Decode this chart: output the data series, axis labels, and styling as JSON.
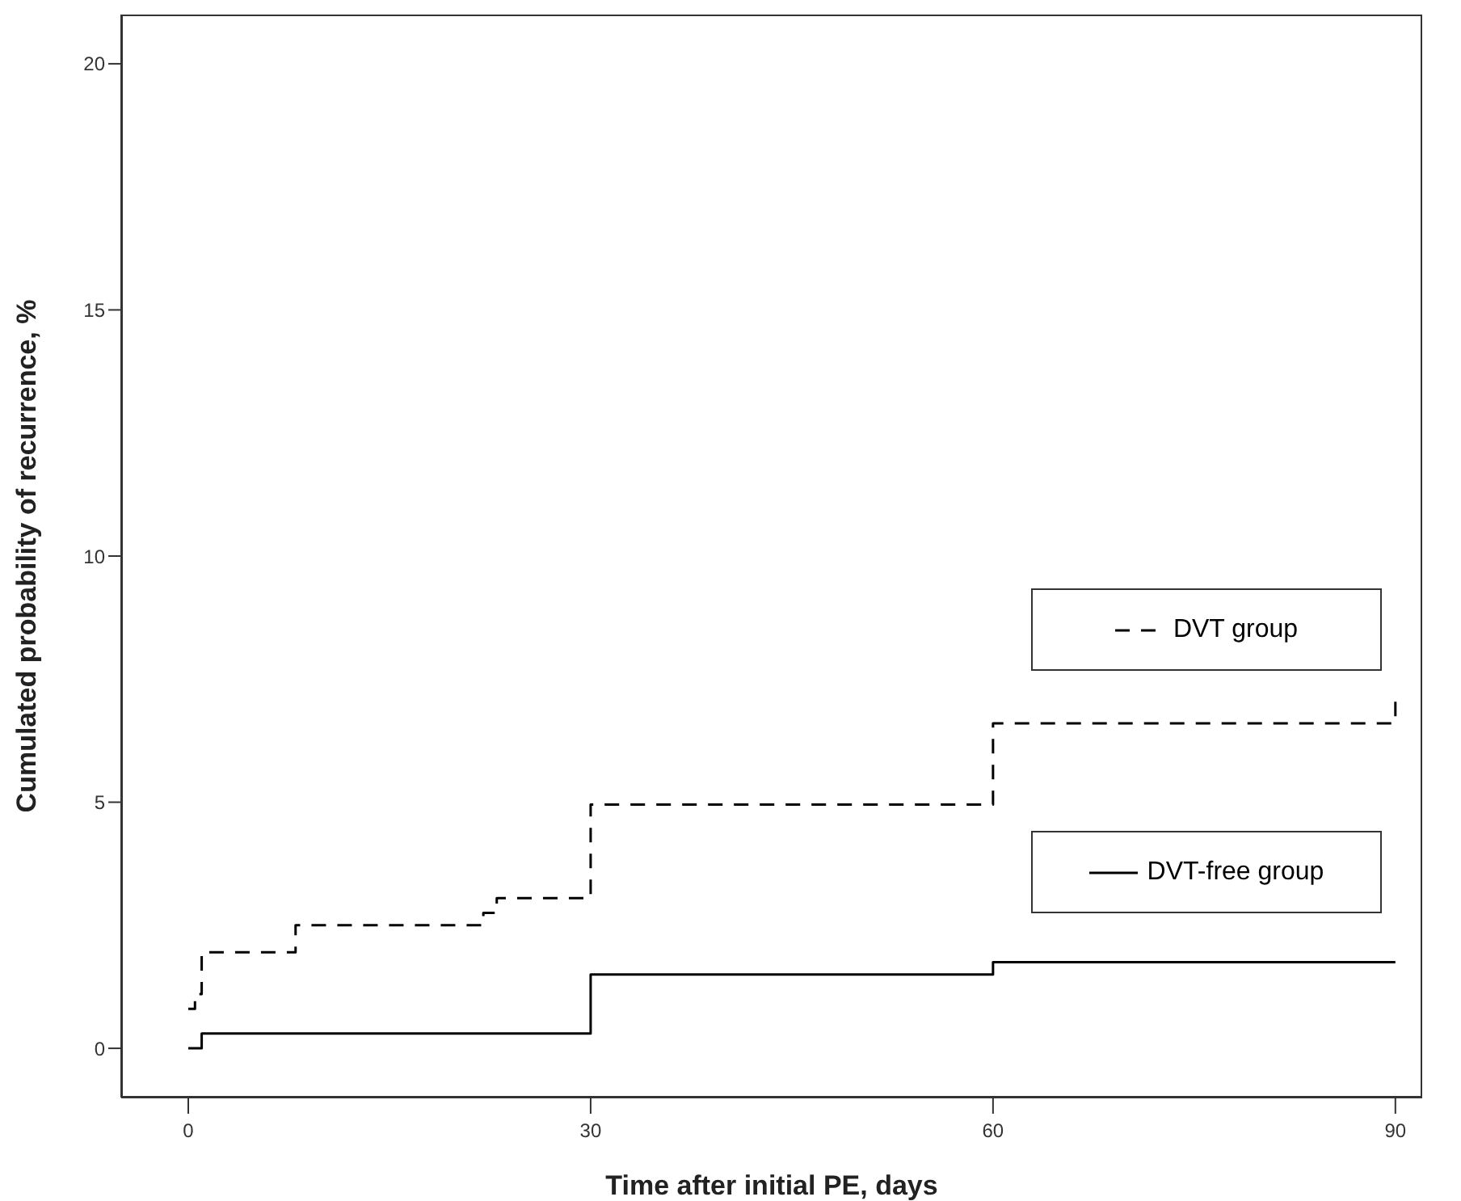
{
  "chart_data": {
    "type": "step",
    "xlabel": "Time after initial PE, days",
    "ylabel": "Cumulated probability of recurrence, %",
    "series": [
      {
        "name": "DVT group",
        "color": "#000000",
        "line_style": "dashed",
        "x": [
          0,
          0.5,
          1,
          8,
          22,
          23,
          30,
          60,
          90
        ],
        "values": [
          0.8,
          1.1,
          1.95,
          2.5,
          2.75,
          3.05,
          4.95,
          6.6,
          7.1
        ]
      },
      {
        "name": "DVT-free group",
        "color": "#000000",
        "line_style": "solid",
        "x": [
          0,
          1,
          30,
          60,
          90
        ],
        "values": [
          0,
          0.3,
          1.5,
          1.75,
          1.75
        ]
      }
    ],
    "xlim": [
      -5,
      92
    ],
    "xticks": [
      0,
      30,
      60,
      90
    ],
    "ylim": [
      -1,
      21
    ],
    "yticks": [
      0,
      5,
      10,
      15,
      20
    ],
    "grid": false,
    "legend": "right"
  }
}
